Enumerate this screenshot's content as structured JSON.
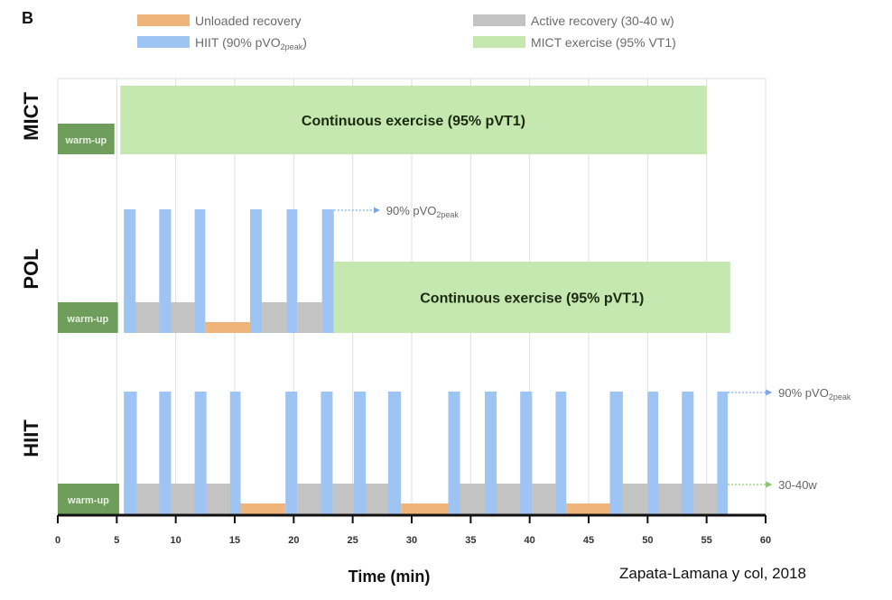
{
  "panel_label": "B",
  "credit": "Zapata-Lamana y col, 2018",
  "colors": {
    "unloaded": "#efb47a",
    "hiit": "#9ec4f3",
    "active": "#c3c3c3",
    "mict": "#c5e8b0",
    "warmup": "#6f9e5c",
    "grid": "#dddddd",
    "axis": "#111111"
  },
  "chart_data": {
    "type": "timeline",
    "title": "",
    "xlabel": "Time (min)",
    "ylabel": "",
    "xlim": [
      0,
      60
    ],
    "x_ticks": [
      0,
      5,
      10,
      15,
      20,
      25,
      30,
      35,
      40,
      45,
      50,
      55,
      60
    ],
    "grid": true,
    "legend_position": "top",
    "legend": [
      {
        "key": "unloaded",
        "label": "Unloaded  recovery"
      },
      {
        "key": "active",
        "label": "Active recovery (30-40 w)"
      },
      {
        "key": "hiit",
        "label": "HIIT (90% pVO",
        "sub": "2peak",
        "suffix": ")"
      },
      {
        "key": "mict",
        "label": "MICT exercise (95% VT1)"
      }
    ],
    "intensity_levels": {
      "warmup": 0.35,
      "unloaded": 0.12,
      "active": 0.35,
      "hiit": 1.0,
      "mict_continuous": 0.8
    },
    "rows": [
      {
        "name": "MICT",
        "segments": [
          {
            "type": "warmup",
            "start": 0,
            "end": 4.8,
            "label": "warm-up"
          },
          {
            "type": "mict",
            "start": 5.3,
            "end": 55,
            "label": "Continuous exercise (95% pVT1)"
          }
        ],
        "annotations": []
      },
      {
        "name": "POL",
        "segments": [
          {
            "type": "warmup",
            "start": 0,
            "end": 5.1,
            "label": "warm-up"
          },
          {
            "type": "active",
            "start": 6.5,
            "end": 8.7
          },
          {
            "type": "active",
            "start": 9.6,
            "end": 11.6
          },
          {
            "type": "unloaded",
            "start": 12.5,
            "end": 16.3
          },
          {
            "type": "active",
            "start": 17.3,
            "end": 19.4
          },
          {
            "type": "active",
            "start": 20.3,
            "end": 22.4
          },
          {
            "type": "hiit",
            "start": 5.6,
            "end": 6.6
          },
          {
            "type": "hiit",
            "start": 8.6,
            "end": 9.6
          },
          {
            "type": "hiit",
            "start": 11.6,
            "end": 12.5
          },
          {
            "type": "hiit",
            "start": 16.3,
            "end": 17.3
          },
          {
            "type": "hiit",
            "start": 19.4,
            "end": 20.3
          },
          {
            "type": "hiit",
            "start": 22.4,
            "end": 23.4
          },
          {
            "type": "mict",
            "start": 23.4,
            "end": 57,
            "label": "Continuous exercise (95% pVT1)"
          }
        ],
        "annotations": [
          {
            "level": "hiit",
            "from_x": 23.4,
            "text": "90% pVO",
            "sub": "2peak",
            "color": "#7aa9e8"
          }
        ]
      },
      {
        "name": "HIIT",
        "segments": [
          {
            "type": "warmup",
            "start": 0,
            "end": 5.2,
            "label": "warm-up"
          },
          {
            "type": "active",
            "start": 6.7,
            "end": 15.5
          },
          {
            "type": "unloaded",
            "start": 15.5,
            "end": 19.3
          },
          {
            "type": "active",
            "start": 20.3,
            "end": 28.9
          },
          {
            "type": "unloaded",
            "start": 29.1,
            "end": 33.1
          },
          {
            "type": "active",
            "start": 34.1,
            "end": 42.2
          },
          {
            "type": "unloaded",
            "start": 43.1,
            "end": 46.8
          },
          {
            "type": "active",
            "start": 47.9,
            "end": 55.9
          },
          {
            "type": "hiit",
            "start": 5.6,
            "end": 6.7
          },
          {
            "type": "hiit",
            "start": 8.6,
            "end": 9.6
          },
          {
            "type": "hiit",
            "start": 11.6,
            "end": 12.6
          },
          {
            "type": "hiit",
            "start": 14.6,
            "end": 15.5
          },
          {
            "type": "hiit",
            "start": 19.3,
            "end": 20.3
          },
          {
            "type": "hiit",
            "start": 22.3,
            "end": 23.3
          },
          {
            "type": "hiit",
            "start": 25.1,
            "end": 26.1
          },
          {
            "type": "hiit",
            "start": 28.0,
            "end": 29.1
          },
          {
            "type": "hiit",
            "start": 33.1,
            "end": 34.1
          },
          {
            "type": "hiit",
            "start": 36.2,
            "end": 37.2
          },
          {
            "type": "hiit",
            "start": 39.2,
            "end": 40.2
          },
          {
            "type": "hiit",
            "start": 42.2,
            "end": 43.1
          },
          {
            "type": "hiit",
            "start": 46.8,
            "end": 47.9
          },
          {
            "type": "hiit",
            "start": 50.0,
            "end": 50.9
          },
          {
            "type": "hiit",
            "start": 52.9,
            "end": 53.9
          },
          {
            "type": "hiit",
            "start": 55.9,
            "end": 56.8
          }
        ],
        "annotations": [
          {
            "level": "hiit",
            "from_x": 56.8,
            "text": "90% pVO",
            "sub": "2peak",
            "color": "#7aa9e8"
          },
          {
            "level": "active",
            "from_x": 56.8,
            "text": "30-40w",
            "sub": "",
            "color": "#8cc46a"
          }
        ]
      }
    ]
  }
}
